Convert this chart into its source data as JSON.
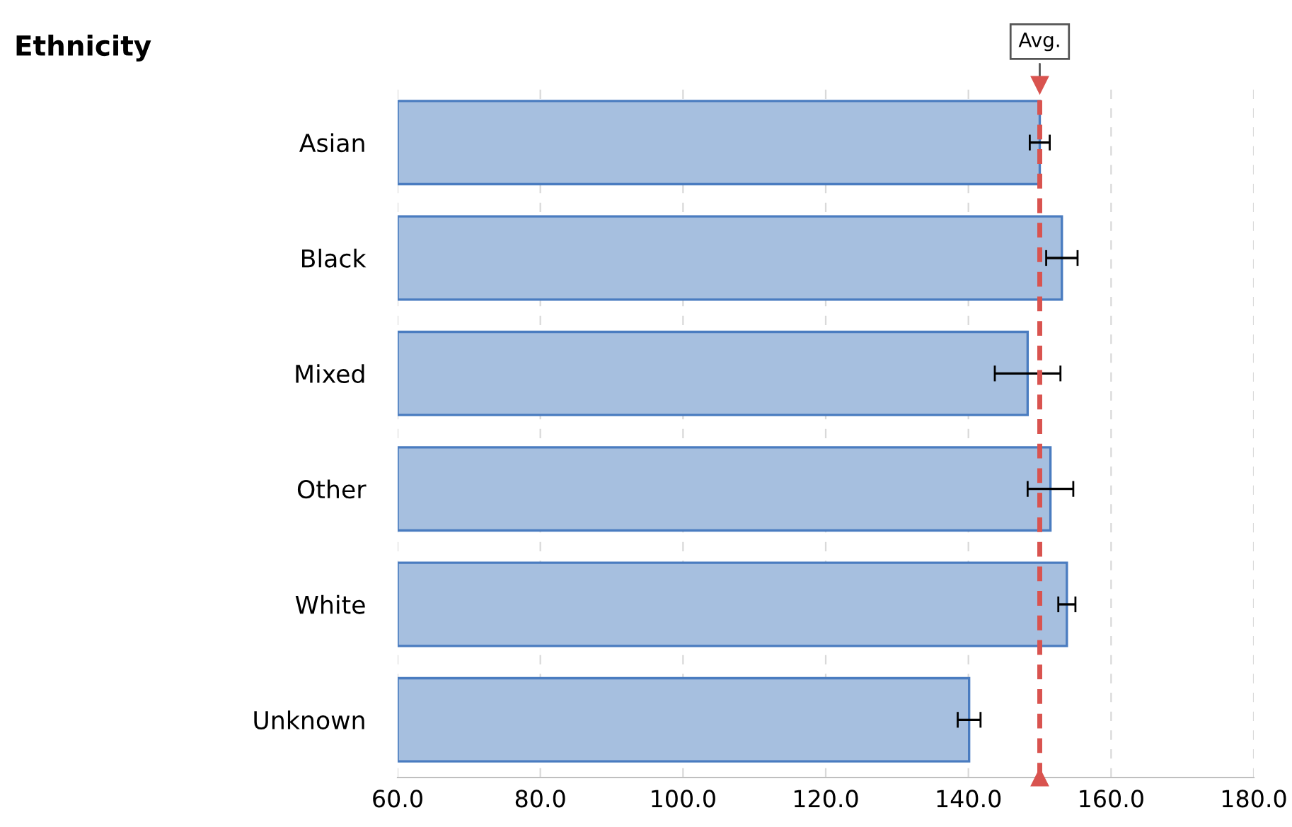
{
  "chart_data": {
    "type": "bar",
    "orientation": "horizontal",
    "title": "Ethnicity",
    "categories": [
      "Asian",
      "Black",
      "Mixed",
      "Other",
      "White",
      "Unknown"
    ],
    "values": [
      150.0,
      153.1,
      148.3,
      151.5,
      153.8,
      140.1
    ],
    "errors": [
      1.4,
      2.2,
      4.6,
      3.2,
      1.2,
      1.6
    ],
    "color": "#a6bfdf",
    "xlim": [
      60,
      180
    ],
    "xticks": [
      {
        "value": 60,
        "label": "60.0"
      },
      {
        "value": 80,
        "label": "80.0"
      },
      {
        "value": 100,
        "label": "100.0"
      },
      {
        "value": 120,
        "label": "120.0"
      },
      {
        "value": 140,
        "label": "140.0"
      },
      {
        "value": 160,
        "label": "160.0"
      },
      {
        "value": 180,
        "label": "180.0"
      }
    ],
    "grid": "x",
    "ref_lines": [
      {
        "axis": "x",
        "value": 150.0,
        "label": "Avg.",
        "color": "#d9534f",
        "line_style": "dashed"
      }
    ]
  }
}
